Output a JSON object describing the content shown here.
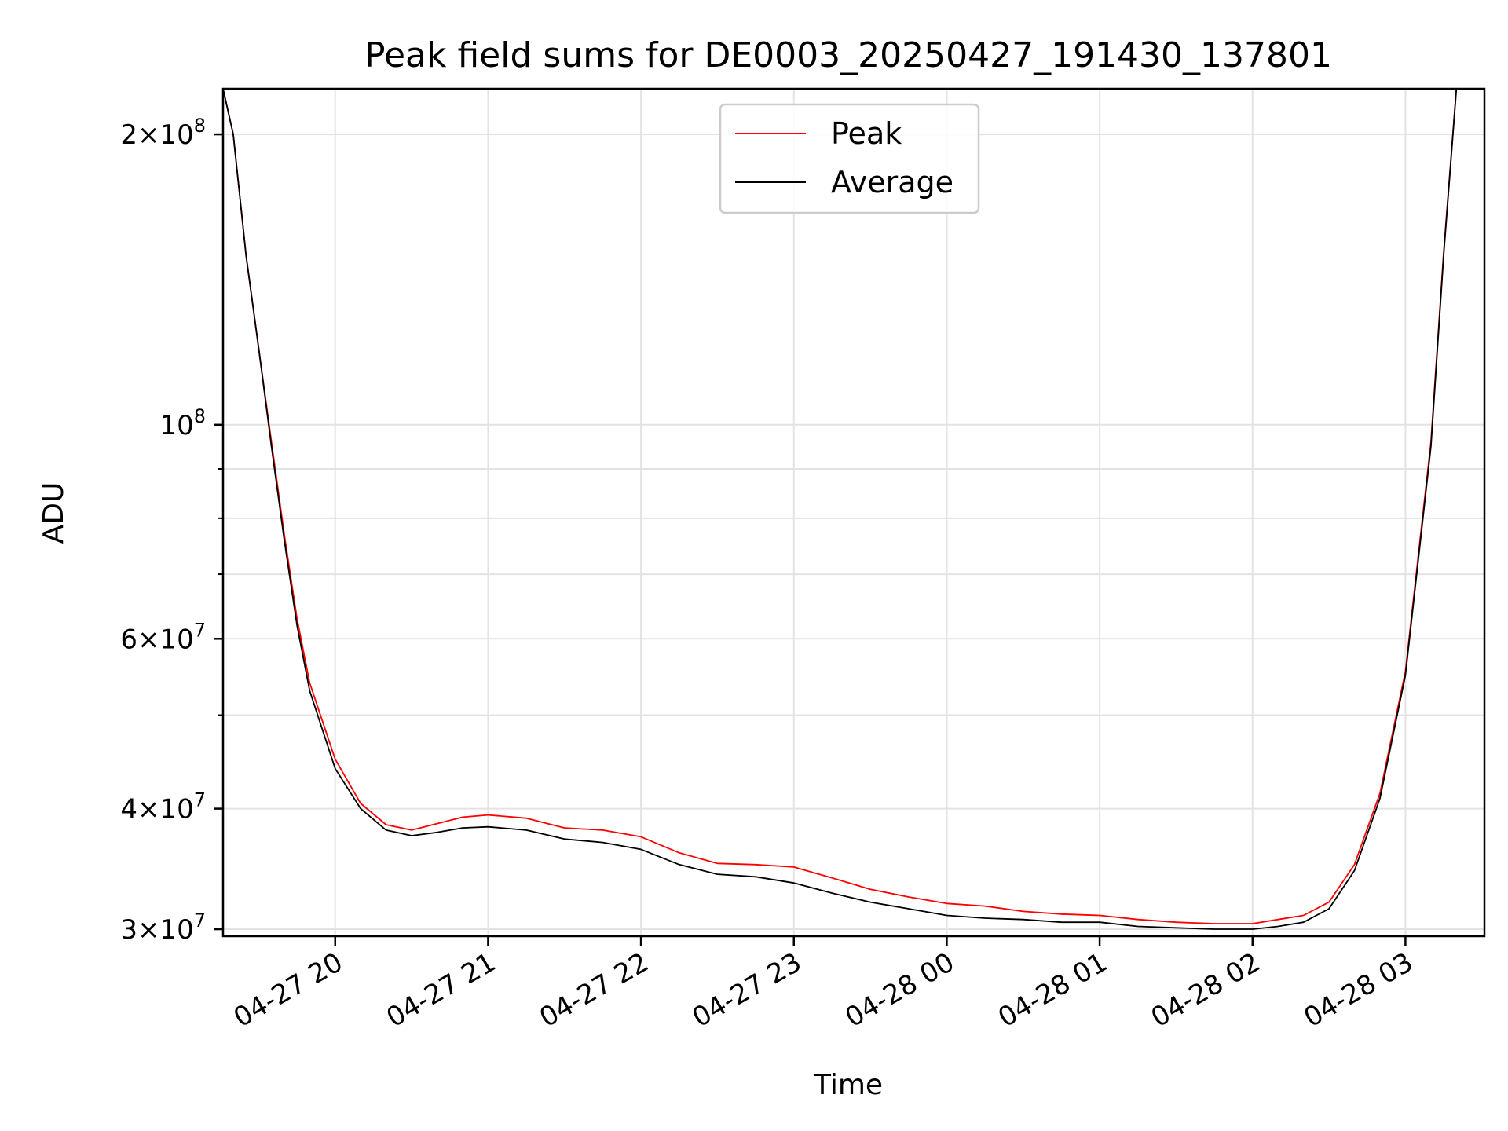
{
  "chart_data": {
    "type": "line",
    "title": "Peak field sums for DE0003_20250427_191430_137801",
    "xlabel": "Time",
    "ylabel": "ADU",
    "yscale": "log",
    "xlim": [
      "2025-04-27 19:16",
      "2025-04-28 03:31"
    ],
    "ylim": [
      29500000,
      223000000
    ],
    "x_ticks": [
      "04-27 20",
      "04-27 21",
      "04-27 22",
      "04-27 23",
      "04-28 00",
      "04-28 01",
      "04-28 02",
      "04-28 03"
    ],
    "y_ticks": [
      {
        "value": 30000000,
        "mant": "3",
        "exp": "7"
      },
      {
        "value": 40000000,
        "mant": "4",
        "exp": "7"
      },
      {
        "value": 60000000,
        "mant": "6",
        "exp": "7"
      },
      {
        "value": 100000000,
        "mant": "",
        "exp": "8"
      },
      {
        "value": 200000000,
        "mant": "2",
        "exp": "8"
      }
    ],
    "grid": true,
    "legend_position": "top-center",
    "series": [
      {
        "name": "Peak",
        "color": "#ff0000"
      },
      {
        "name": "Average",
        "color": "#000000"
      }
    ],
    "average": {
      "x": [
        "2025-04-27 19:16",
        "2025-04-27 19:20",
        "2025-04-27 19:25",
        "2025-04-27 19:30",
        "2025-04-27 19:35",
        "2025-04-27 19:40",
        "2025-04-27 19:45",
        "2025-04-27 19:50",
        "2025-04-27 20:00",
        "2025-04-27 20:10",
        "2025-04-27 20:20",
        "2025-04-27 20:30",
        "2025-04-27 20:40",
        "2025-04-27 20:50",
        "2025-04-27 21:00",
        "2025-04-27 21:15",
        "2025-04-27 21:30",
        "2025-04-27 21:45",
        "2025-04-27 22:00",
        "2025-04-27 22:15",
        "2025-04-27 22:30",
        "2025-04-27 22:45",
        "2025-04-27 23:00",
        "2025-04-27 23:15",
        "2025-04-27 23:30",
        "2025-04-27 23:45",
        "2025-04-28 00:00",
        "2025-04-28 00:15",
        "2025-04-28 00:30",
        "2025-04-28 00:45",
        "2025-04-28 01:00",
        "2025-04-28 01:15",
        "2025-04-28 01:30",
        "2025-04-28 01:45",
        "2025-04-28 02:00",
        "2025-04-28 02:10",
        "2025-04-28 02:20",
        "2025-04-28 02:30",
        "2025-04-28 02:40",
        "2025-04-28 02:50",
        "2025-04-28 03:00",
        "2025-04-28 03:10",
        "2025-04-28 03:15",
        "2025-04-28 03:20"
      ],
      "y": [
        223000000,
        200000000,
        150000000,
        120000000,
        95000000,
        76000000,
        62000000,
        53000000,
        44000000,
        40000000,
        38000000,
        37500000,
        37800000,
        38200000,
        38300000,
        38000000,
        37200000,
        36900000,
        36300000,
        35000000,
        34200000,
        34000000,
        33500000,
        32700000,
        32000000,
        31500000,
        31000000,
        30800000,
        30700000,
        30500000,
        30500000,
        30200000,
        30100000,
        30000000,
        30000000,
        30200000,
        30500000,
        31500000,
        34500000,
        41000000,
        55000000,
        95000000,
        150000000,
        223000000
      ]
    },
    "peak": {
      "x": [
        "2025-04-27 19:16",
        "2025-04-27 19:20",
        "2025-04-27 19:25",
        "2025-04-27 19:30",
        "2025-04-27 19:35",
        "2025-04-27 19:40",
        "2025-04-27 19:45",
        "2025-04-27 19:50",
        "2025-04-27 20:00",
        "2025-04-27 20:10",
        "2025-04-27 20:20",
        "2025-04-27 20:30",
        "2025-04-27 20:40",
        "2025-04-27 20:50",
        "2025-04-27 21:00",
        "2025-04-27 21:15",
        "2025-04-27 21:30",
        "2025-04-27 21:45",
        "2025-04-27 22:00",
        "2025-04-27 22:15",
        "2025-04-27 22:30",
        "2025-04-27 22:45",
        "2025-04-27 23:00",
        "2025-04-27 23:15",
        "2025-04-27 23:30",
        "2025-04-27 23:45",
        "2025-04-28 00:00",
        "2025-04-28 00:15",
        "2025-04-28 00:30",
        "2025-04-28 00:45",
        "2025-04-28 01:00",
        "2025-04-28 01:15",
        "2025-04-28 01:30",
        "2025-04-28 01:45",
        "2025-04-28 02:00",
        "2025-04-28 02:10",
        "2025-04-28 02:20",
        "2025-04-28 02:30",
        "2025-04-28 02:40",
        "2025-04-28 02:50",
        "2025-04-28 03:00",
        "2025-04-28 03:10",
        "2025-04-28 03:15",
        "2025-04-28 03:20"
      ],
      "y": [
        223000000,
        200000000,
        150000000,
        120000000,
        96000000,
        77000000,
        63000000,
        54000000,
        45000000,
        40500000,
        38500000,
        38000000,
        38600000,
        39200000,
        39400000,
        39100000,
        38200000,
        38000000,
        37400000,
        36000000,
        35100000,
        35000000,
        34800000,
        33900000,
        33000000,
        32400000,
        31900000,
        31700000,
        31300000,
        31100000,
        31000000,
        30700000,
        30500000,
        30400000,
        30400000,
        30700000,
        31000000,
        32000000,
        35000000,
        41500000,
        55500000,
        96000000,
        151000000,
        223000000
      ]
    }
  }
}
